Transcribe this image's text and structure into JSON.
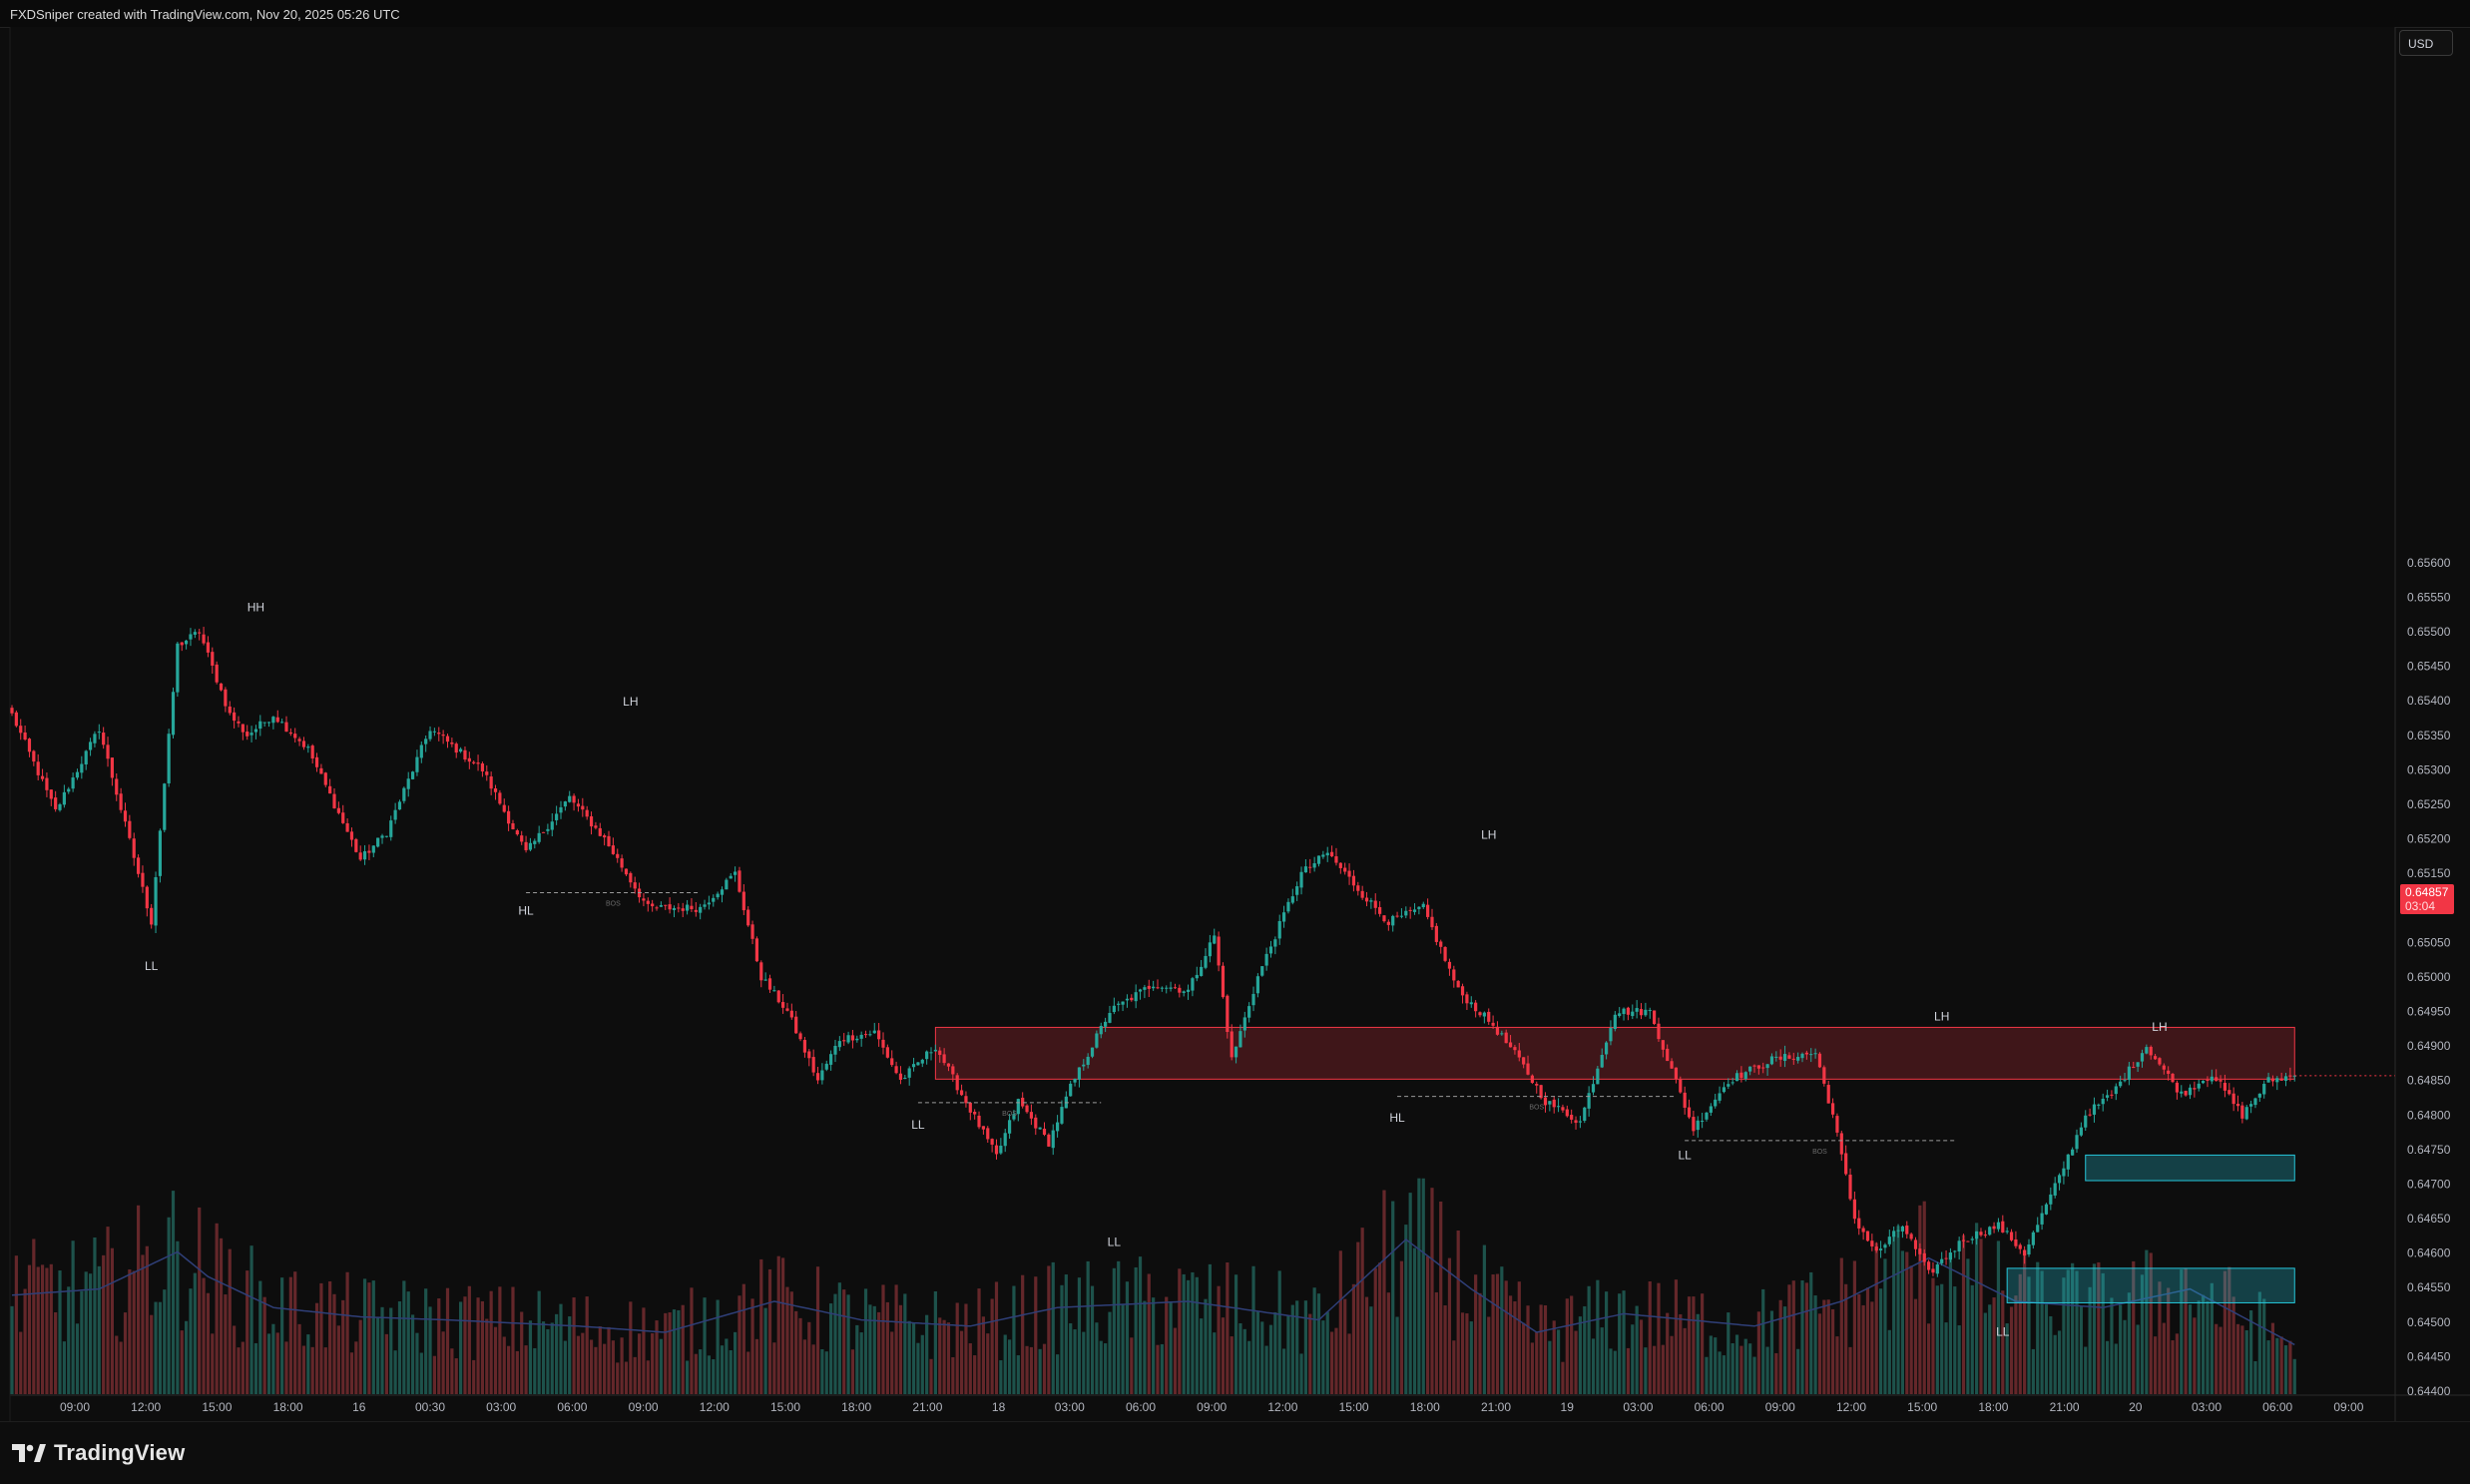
{
  "header": {
    "text": "FXDSniper created with TradingView.com, Nov 20, 2025 05:26 UTC"
  },
  "toolbar": {
    "currency_label": "USD"
  },
  "footer": {
    "brand": "TradingView",
    "logo_icon": "tradingview-logo-icon"
  },
  "price_badge": {
    "price": "0.64857",
    "countdown": "03:04",
    "color": "#f23645"
  },
  "colors": {
    "up": "#26a69a",
    "down": "#f23645",
    "supply_zone": "#f23645",
    "demand_zone": "#26c6da",
    "volume_ma": "#2f3f78"
  },
  "chart_data": {
    "type": "candlestick",
    "symbol_currency": "USD",
    "y_axis": {
      "position": "right",
      "ylim": [
        0.644,
        0.6562
      ],
      "ticks": [
        "0.65600",
        "0.65550",
        "0.65500",
        "0.65450",
        "0.65400",
        "0.65350",
        "0.65300",
        "0.65250",
        "0.65200",
        "0.65150",
        "0.65100",
        "0.65050",
        "0.65000",
        "0.64950",
        "0.64900",
        "0.64850",
        "0.64800",
        "0.64750",
        "0.64700",
        "0.64650",
        "0.64600",
        "0.64550",
        "0.64500",
        "0.64450",
        "0.64400"
      ]
    },
    "x_axis": {
      "ticks": [
        "09:00",
        "12:00",
        "15:00",
        "18:00",
        "16",
        "00:30",
        "03:00",
        "06:00",
        "09:00",
        "12:00",
        "15:00",
        "18:00",
        "21:00",
        "18",
        "03:00",
        "06:00",
        "09:00",
        "12:00",
        "15:00",
        "18:00",
        "21:00",
        "19",
        "03:00",
        "06:00",
        "09:00",
        "12:00",
        "15:00",
        "18:00",
        "21:00",
        "20",
        "03:00",
        "06:00",
        "09:00"
      ]
    },
    "price_path": [
      [
        0,
        0.6538
      ],
      [
        10,
        0.6524
      ],
      [
        20,
        0.6536
      ],
      [
        32,
        0.6508
      ],
      [
        38,
        0.6548
      ],
      [
        43,
        0.655
      ],
      [
        50,
        0.6538
      ],
      [
        54,
        0.6535
      ],
      [
        60,
        0.6538
      ],
      [
        68,
        0.6533
      ],
      [
        74,
        0.6525
      ],
      [
        80,
        0.6517
      ],
      [
        86,
        0.6521
      ],
      [
        96,
        0.6536
      ],
      [
        108,
        0.653
      ],
      [
        118,
        0.6518
      ],
      [
        128,
        0.6526
      ],
      [
        136,
        0.652
      ],
      [
        146,
        0.651
      ],
      [
        158,
        0.651
      ],
      [
        166,
        0.6515
      ],
      [
        172,
        0.65
      ],
      [
        178,
        0.6495
      ],
      [
        185,
        0.6485
      ],
      [
        190,
        0.6491
      ],
      [
        198,
        0.6492
      ],
      [
        204,
        0.6485
      ],
      [
        212,
        0.649
      ],
      [
        218,
        0.6483
      ],
      [
        226,
        0.6474
      ],
      [
        231,
        0.6482
      ],
      [
        238,
        0.6476
      ],
      [
        243,
        0.6484
      ],
      [
        252,
        0.6495
      ],
      [
        262,
        0.6499
      ],
      [
        270,
        0.6498
      ],
      [
        276,
        0.6506
      ],
      [
        280,
        0.6488
      ],
      [
        286,
        0.65
      ],
      [
        296,
        0.6515
      ],
      [
        302,
        0.6518
      ],
      [
        310,
        0.6512
      ],
      [
        316,
        0.6508
      ],
      [
        324,
        0.651
      ],
      [
        332,
        0.6498
      ],
      [
        340,
        0.6493
      ],
      [
        346,
        0.6488
      ],
      [
        352,
        0.6482
      ],
      [
        360,
        0.6479
      ],
      [
        368,
        0.6495
      ],
      [
        376,
        0.6495
      ],
      [
        386,
        0.6478
      ],
      [
        394,
        0.6485
      ],
      [
        404,
        0.6488
      ],
      [
        414,
        0.6489
      ],
      [
        418,
        0.648
      ],
      [
        423,
        0.6465
      ],
      [
        428,
        0.646
      ],
      [
        434,
        0.6464
      ],
      [
        440,
        0.6457
      ],
      [
        448,
        0.6462
      ],
      [
        456,
        0.6464
      ],
      [
        462,
        0.646
      ],
      [
        470,
        0.6471
      ],
      [
        476,
        0.648
      ],
      [
        482,
        0.6483
      ],
      [
        490,
        0.649
      ],
      [
        498,
        0.6483
      ],
      [
        505,
        0.6486
      ],
      [
        512,
        0.648
      ],
      [
        518,
        0.6485
      ],
      [
        524,
        0.64857
      ]
    ],
    "volume": {
      "ylim": [
        0,
        100
      ],
      "profile": [
        [
          0,
          32
        ],
        [
          20,
          34
        ],
        [
          38,
          46
        ],
        [
          45,
          38
        ],
        [
          60,
          28
        ],
        [
          80,
          25
        ],
        [
          100,
          24
        ],
        [
          130,
          22
        ],
        [
          150,
          20
        ],
        [
          175,
          30
        ],
        [
          195,
          24
        ],
        [
          220,
          22
        ],
        [
          240,
          28
        ],
        [
          270,
          30
        ],
        [
          300,
          24
        ],
        [
          320,
          50
        ],
        [
          335,
          34
        ],
        [
          350,
          20
        ],
        [
          370,
          26
        ],
        [
          400,
          22
        ],
        [
          420,
          30
        ],
        [
          440,
          44
        ],
        [
          460,
          30
        ],
        [
          480,
          28
        ],
        [
          500,
          34
        ],
        [
          524,
          16
        ]
      ]
    },
    "zones": [
      {
        "name": "supply-zone",
        "kind": "supply",
        "x_start": 212,
        "x_end": 524,
        "price_top": 0.64927,
        "price_bottom": 0.64852
      },
      {
        "name": "demand-zone-upper",
        "kind": "demand",
        "x_start": 476,
        "x_end": 524,
        "price_top": 0.64742,
        "price_bottom": 0.64705
      },
      {
        "name": "demand-zone-lower",
        "kind": "demand",
        "x_start": 458,
        "x_end": 524,
        "price_top": 0.64578,
        "price_bottom": 0.64528
      }
    ],
    "bos_lines": [
      {
        "x_start": 118,
        "x_end": 158,
        "price": 0.65122,
        "label": "BOS"
      },
      {
        "x_start": 208,
        "x_end": 250,
        "price": 0.64818,
        "label": "BOS"
      },
      {
        "x_start": 318,
        "x_end": 382,
        "price": 0.64827,
        "label": "BOS"
      },
      {
        "x_start": 384,
        "x_end": 446,
        "price": 0.64763,
        "label": "BOS"
      }
    ],
    "annotations": [
      {
        "label": "HH",
        "x": 56,
        "price": 0.6553
      },
      {
        "label": "LL",
        "x": 32,
        "price": 0.6501
      },
      {
        "label": "LH",
        "x": 142,
        "price": 0.65393
      },
      {
        "label": "HL",
        "x": 118,
        "price": 0.6509
      },
      {
        "label": "LL",
        "x": 208,
        "price": 0.6478
      },
      {
        "label": "LL",
        "x": 253,
        "price": 0.6461
      },
      {
        "label": "LH",
        "x": 339,
        "price": 0.652
      },
      {
        "label": "HL",
        "x": 318,
        "price": 0.6479
      },
      {
        "label": "LL",
        "x": 384,
        "price": 0.64736
      },
      {
        "label": "LH",
        "x": 443,
        "price": 0.64937
      },
      {
        "label": "LL",
        "x": 457,
        "price": 0.6448
      },
      {
        "label": "LH",
        "x": 493,
        "price": 0.64922
      }
    ],
    "current_price": 0.64857
  }
}
